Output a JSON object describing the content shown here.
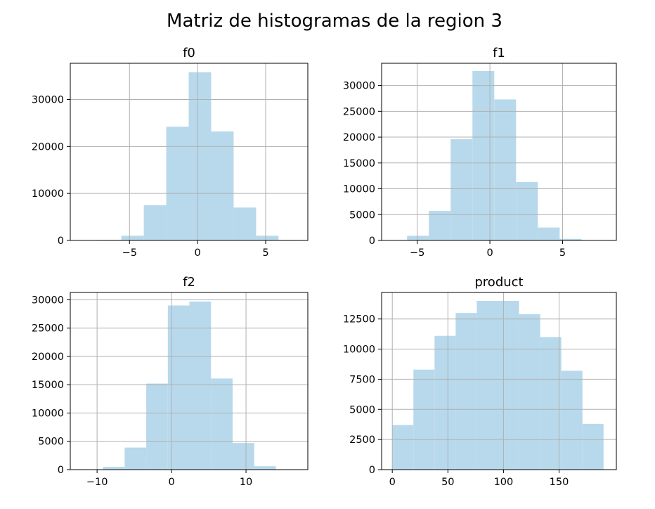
{
  "figure": {
    "suptitle": "Matriz de histogramas de la region 3",
    "bar_color": "#b8d9ec"
  },
  "chart_data": [
    {
      "type": "bar",
      "title": "f0",
      "grid": true,
      "xlim": [
        -9.35,
        8.1
      ],
      "ylim": [
        0,
        37700
      ],
      "xticks": [
        -5,
        0,
        5
      ],
      "xtick_labels": [
        "−5",
        "0",
        "5"
      ],
      "yticks": [
        0,
        10000,
        20000,
        30000
      ],
      "ytick_labels": [
        "0",
        "10000",
        "20000",
        "30000"
      ],
      "bin_edges": [
        -7.25,
        -5.6,
        -3.95,
        -2.3,
        -0.65,
        1.0,
        2.65,
        4.3,
        5.95,
        7.6
      ],
      "values": [
        100,
        1000,
        7500,
        24200,
        35800,
        23200,
        7000,
        1000,
        100
      ]
    },
    {
      "type": "bar",
      "title": "f1",
      "grid": true,
      "xlim": [
        -7.45,
        8.7
      ],
      "ylim": [
        0,
        34300
      ],
      "xticks": [
        -5,
        0,
        5
      ],
      "xtick_labels": [
        "−5",
        "0",
        "5"
      ],
      "yticks": [
        0,
        5000,
        10000,
        15000,
        20000,
        25000,
        30000
      ],
      "ytick_labels": [
        "0",
        "5000",
        "10000",
        "15000",
        "20000",
        "25000",
        "30000"
      ],
      "bin_edges": [
        -5.7,
        -4.2,
        -2.7,
        -1.2,
        0.3,
        1.8,
        3.3,
        4.8,
        6.3,
        7.8
      ],
      "values": [
        900,
        5700,
        19600,
        32800,
        27300,
        11300,
        2500,
        300,
        10
      ]
    },
    {
      "type": "bar",
      "title": "f2",
      "grid": true,
      "xlim": [
        -13.6,
        18.3
      ],
      "ylim": [
        0,
        31300
      ],
      "xticks": [
        -10,
        0,
        10
      ],
      "xtick_labels": [
        "−10",
        "0",
        "10"
      ],
      "yticks": [
        0,
        5000,
        10000,
        15000,
        20000,
        25000,
        30000
      ],
      "ytick_labels": [
        "0",
        "5000",
        "10000",
        "15000",
        "20000",
        "25000",
        "30000"
      ],
      "bin_edges": [
        -12.1,
        -9.2,
        -6.3,
        -3.4,
        -0.5,
        2.4,
        5.3,
        8.2,
        11.1,
        14.0
      ],
      "values": [
        20,
        500,
        3900,
        15200,
        29000,
        29700,
        16100,
        4700,
        600
      ]
    },
    {
      "type": "bar",
      "title": "product",
      "grid": true,
      "xlim": [
        -9.6,
        201.5
      ],
      "ylim": [
        0,
        14700
      ],
      "xticks": [
        0,
        50,
        100,
        150
      ],
      "xtick_labels": [
        "0",
        "50",
        "100",
        "150"
      ],
      "yticks": [
        0,
        2500,
        5000,
        7500,
        10000,
        12500
      ],
      "ytick_labels": [
        "0",
        "2500",
        "5000",
        "7500",
        "10000",
        "12500"
      ],
      "bin_edges": [
        0,
        19,
        38,
        57,
        76,
        95,
        114,
        133,
        152,
        171,
        190
      ],
      "values": [
        3700,
        8300,
        11100,
        13000,
        14000,
        14000,
        12900,
        11000,
        8200,
        3800
      ]
    }
  ]
}
